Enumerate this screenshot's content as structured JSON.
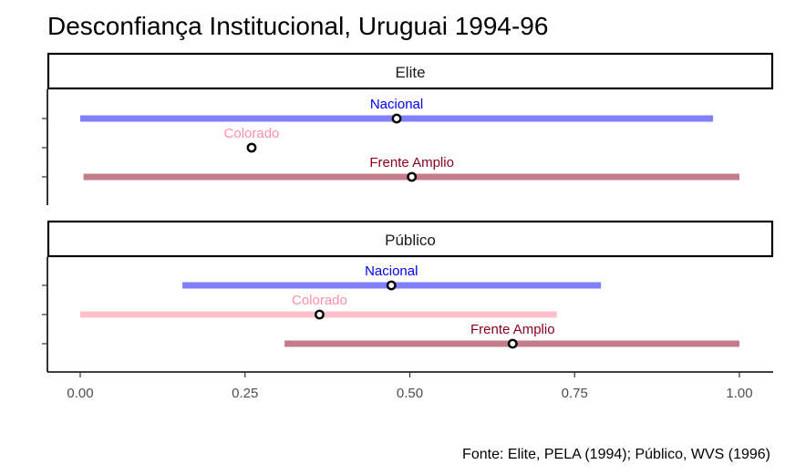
{
  "chart_data": {
    "type": "range-point",
    "title": "Desconfiança Institucional, Uruguai 1994-96",
    "caption": "Fonte: Elite, PELA (1994); Público, WVS (1996)",
    "x_ticks": [
      "0.00",
      "0.25",
      "0.50",
      "0.75",
      "1.00"
    ],
    "xlim": [
      -0.05,
      1.05
    ],
    "panels": [
      {
        "name": "Elite",
        "series": [
          {
            "label": "Nacional",
            "min": 0.0,
            "max": 0.96,
            "point": 0.48,
            "color": "#8080ff"
          },
          {
            "label": "Colorado",
            "min": null,
            "max": null,
            "point": 0.26,
            "color": "#ffc0cb"
          },
          {
            "label": "Frente Amplio",
            "min": 0.005,
            "max": 1.0,
            "point": 0.503,
            "color": "#c47c8a"
          }
        ]
      },
      {
        "name": "Público",
        "series": [
          {
            "label": "Nacional",
            "min": 0.155,
            "max": 0.79,
            "point": 0.472,
            "color": "#8080ff"
          },
          {
            "label": "Colorado",
            "min": 0.0,
            "max": 0.723,
            "point": 0.363,
            "color": "#ffc0cb"
          },
          {
            "label": "Frente Amplio",
            "min": 0.31,
            "max": 1.0,
            "point": 0.656,
            "color": "#c47c8a"
          }
        ]
      }
    ],
    "label_colors": {
      "Nacional": "#0000ee",
      "Colorado": "#ff8fa8",
      "Frente Amplio": "#8b0020"
    }
  }
}
